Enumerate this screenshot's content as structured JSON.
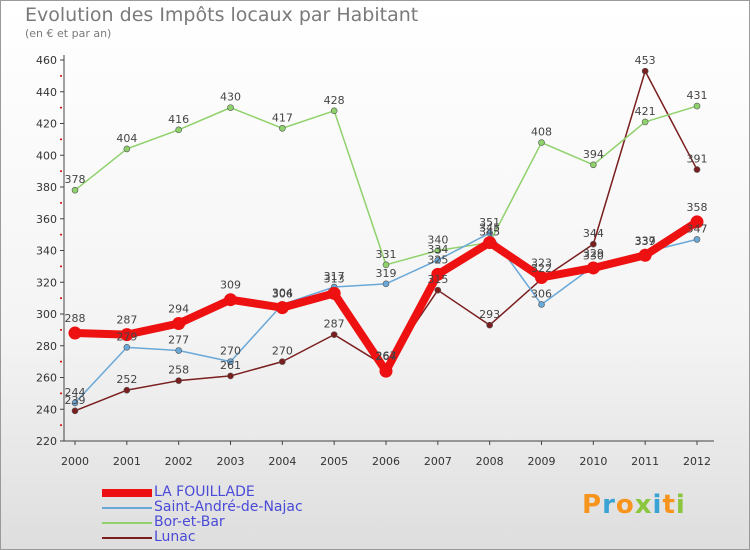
{
  "header": {
    "title": "Evolution des Impôts locaux par Habitant",
    "subtitle": "(en € et par an)"
  },
  "logo": {
    "text": "Proxiti",
    "colors": [
      "#f7941d",
      "#3aa3d6",
      "#f7941d",
      "#8cc63f",
      "#3aa3d6",
      "#f7941d",
      "#8cc63f"
    ]
  },
  "chart_data": {
    "type": "line",
    "x": [
      "2000",
      "2001",
      "2002",
      "2003",
      "2004",
      "2005",
      "2006",
      "2007",
      "2008",
      "2009",
      "2010",
      "2011",
      "2012"
    ],
    "ylim": [
      220,
      460
    ],
    "yticks": [
      220,
      240,
      260,
      280,
      300,
      320,
      340,
      360,
      380,
      400,
      420,
      440,
      460
    ],
    "grid": false,
    "legend_position": "bottom-left",
    "series": [
      {
        "name": "LA FOUILLADE",
        "color": "#ee1111",
        "values": [
          288,
          287,
          294,
          309,
          304,
          313,
          264,
          325,
          345,
          323,
          329,
          337,
          358
        ],
        "labels": [
          "288",
          "287",
          "294",
          "309",
          "304",
          "313",
          "264",
          "325",
          "345",
          "323",
          "329",
          "337",
          "358"
        ]
      },
      {
        "name": "Saint-André-de-Najac",
        "color": "#6aa8d8",
        "values": [
          244,
          279,
          277,
          270,
          306,
          317,
          319,
          334,
          351,
          306,
          330,
          339,
          347
        ],
        "labels": [
          "244",
          "279",
          "277",
          "270",
          "306",
          "317",
          "319",
          "334",
          "351",
          "306",
          "330",
          "339",
          "347"
        ]
      },
      {
        "name": "Bor-et-Bar",
        "color": "#8fd16b",
        "values": [
          378,
          404,
          416,
          430,
          417,
          428,
          331,
          340,
          345,
          408,
          394,
          421,
          431
        ],
        "labels": [
          "378",
          "404",
          "416",
          "430",
          "417",
          "428",
          "331",
          "340",
          "345",
          "408",
          "394",
          "421",
          "431"
        ]
      },
      {
        "name": "Lunac",
        "color": "#7a1e1e",
        "values": [
          239,
          252,
          258,
          261,
          270,
          287,
          267,
          315,
          293,
          322,
          344,
          453,
          391
        ],
        "labels": [
          "239",
          "252",
          "258",
          "261",
          "270",
          "287",
          "267",
          "315",
          "293",
          "322",
          "344",
          "453",
          "391"
        ]
      }
    ]
  }
}
